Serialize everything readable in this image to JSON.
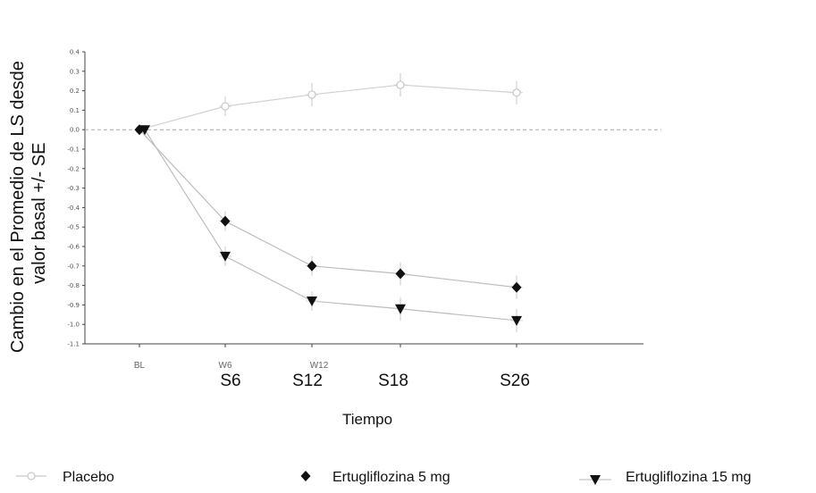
{
  "chart_data": {
    "type": "line",
    "ylabel_line1": "Cambio en el Promedio de LS desde",
    "ylabel_line2": "valor basal +/- SE",
    "xlabel": "Tiempo",
    "ylim": [
      -1.1,
      0.4
    ],
    "y_ticks": [
      "0.4",
      "0.3",
      "0.2",
      "0.1",
      "0.0",
      "-0.1",
      "-0.2",
      "-0.3",
      "-0.4",
      "-0.5",
      "-0.6",
      "-0.7",
      "-0.8",
      "-0.9",
      "-1.0",
      "-1.1"
    ],
    "categories": [
      "BL",
      "S6",
      "S12",
      "S18",
      "S26"
    ],
    "category_codes": [
      "BL",
      "W6",
      "W12",
      "",
      ""
    ],
    "reference_line": 0,
    "series": [
      {
        "name": "Placebo",
        "marker": "open-circle",
        "color": "#c8c8c8",
        "values": [
          0.0,
          0.12,
          0.18,
          0.23,
          0.19
        ],
        "se": [
          0.0,
          0.05,
          0.06,
          0.06,
          0.06
        ]
      },
      {
        "name": "Ertugliflozina 5 mg",
        "marker": "diamond",
        "color": "#111111",
        "values": [
          0.0,
          -0.47,
          -0.7,
          -0.74,
          -0.81
        ],
        "se": [
          0.0,
          0.05,
          0.05,
          0.06,
          0.06
        ]
      },
      {
        "name": "Ertugliflozina 15 mg",
        "marker": "triangle-down",
        "color": "#111111",
        "values": [
          0.0,
          -0.65,
          -0.88,
          -0.92,
          -0.98
        ],
        "se": [
          0.0,
          0.05,
          0.05,
          0.06,
          0.06
        ]
      }
    ],
    "grid": false,
    "legend_position": "bottom"
  }
}
